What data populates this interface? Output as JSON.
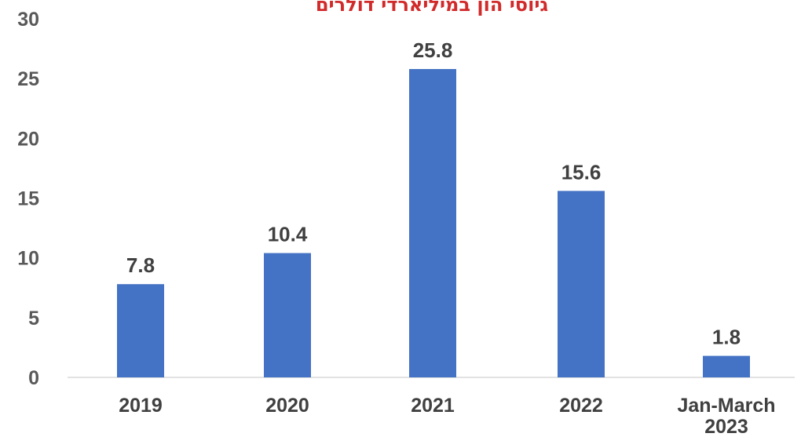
{
  "chart_data": {
    "type": "bar",
    "title": "גיוסי הון במיליארדי דולרים",
    "categories": [
      "2019",
      "2020",
      "2021",
      "2022",
      "Jan-March 2023"
    ],
    "category_lines": [
      [
        "2019"
      ],
      [
        "2020"
      ],
      [
        "2021"
      ],
      [
        "2022"
      ],
      [
        "Jan-March",
        "2023"
      ]
    ],
    "values": [
      7.8,
      10.4,
      25.8,
      15.6,
      1.8
    ],
    "value_labels": [
      "7.8",
      "10.4",
      "25.8",
      "15.6",
      "1.8"
    ],
    "xlabel": "",
    "ylabel": "",
    "ylim": [
      0,
      30
    ],
    "yticks": [
      0,
      5,
      10,
      15,
      20,
      25,
      30
    ],
    "grid": false,
    "legend": "none",
    "bar_color": "#4472c4",
    "title_color": "#d12a2a"
  }
}
